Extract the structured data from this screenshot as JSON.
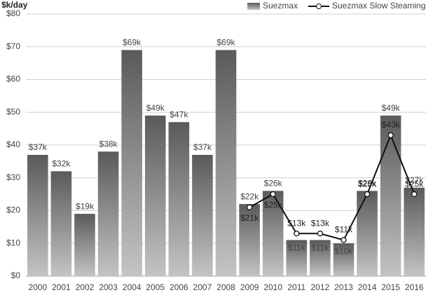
{
  "chart_data": {
    "type": "bar",
    "y_label": "$k/day",
    "categories": [
      "2000",
      "2001",
      "2002",
      "2003",
      "2004",
      "2005",
      "2006",
      "2007",
      "2008",
      "2009",
      "2010",
      "2011",
      "2012",
      "2013",
      "2014",
      "2015",
      "2016"
    ],
    "series": [
      {
        "name": "Suezmax",
        "type": "bar",
        "color": "#6e6e6e",
        "values": [
          37,
          32,
          19,
          38,
          69,
          49,
          47,
          37,
          69,
          22,
          26,
          11,
          11,
          10,
          26,
          49,
          27
        ],
        "value_labels": [
          "$37k",
          "$32k",
          "$19k",
          "$38k",
          "$69k",
          "$49k",
          "$47k",
          "$37k",
          "$69k",
          "$22k",
          "$26k",
          "$11k",
          "$11k",
          "$10k",
          "$26k",
          "$49k",
          "$27k"
        ]
      },
      {
        "name": "Suezmax Slow Steaming",
        "type": "line",
        "color": "#111111",
        "values": [
          null,
          null,
          null,
          null,
          null,
          null,
          null,
          null,
          null,
          21,
          25,
          13,
          13,
          11,
          25,
          43,
          25
        ],
        "value_labels": [
          null,
          null,
          null,
          null,
          null,
          null,
          null,
          null,
          null,
          "$21k",
          "$25k",
          "$13k",
          "$13k",
          "$11k",
          "$25k",
          "$43k",
          "$25k"
        ]
      }
    ],
    "ylim": [
      0,
      80
    ],
    "yticks": [
      {
        "value": 0,
        "label": "$0"
      },
      {
        "value": 10,
        "label": "$10"
      },
      {
        "value": 20,
        "label": "$20"
      },
      {
        "value": 30,
        "label": "$30"
      },
      {
        "value": 40,
        "label": "$40"
      },
      {
        "value": 50,
        "label": "$50"
      },
      {
        "value": 60,
        "label": "$60"
      },
      {
        "value": 70,
        "label": "$70"
      },
      {
        "value": 80,
        "label": "$80"
      }
    ],
    "grid": true,
    "legend": "top-right"
  }
}
